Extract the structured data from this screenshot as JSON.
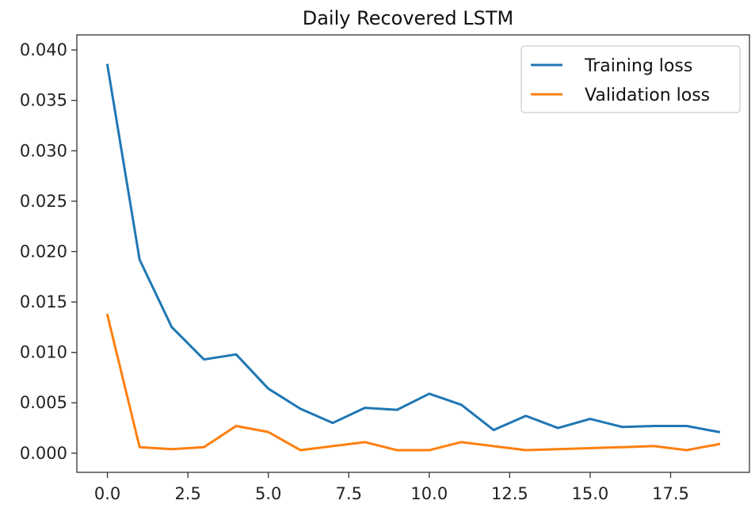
{
  "chart_data": {
    "type": "line",
    "title": "Daily Recovered LSTM",
    "xlabel": "",
    "ylabel": "",
    "xlim": [
      -0.95,
      19.95
    ],
    "ylim": [
      -0.0019,
      0.0415
    ],
    "grid": false,
    "legend_position": "top-right",
    "x": [
      0,
      1,
      2,
      3,
      4,
      5,
      6,
      7,
      8,
      9,
      10,
      11,
      12,
      13,
      14,
      15,
      16,
      17,
      18,
      19
    ],
    "x_ticks": [
      0.0,
      2.5,
      5.0,
      7.5,
      10.0,
      12.5,
      15.0,
      17.5
    ],
    "x_tick_labels": [
      "0.0",
      "2.5",
      "5.0",
      "7.5",
      "10.0",
      "12.5",
      "15.0",
      "17.5"
    ],
    "y_ticks": [
      0.0,
      0.005,
      0.01,
      0.015,
      0.02,
      0.025,
      0.03,
      0.035,
      0.04
    ],
    "y_tick_labels": [
      "0.000",
      "0.005",
      "0.010",
      "0.015",
      "0.020",
      "0.025",
      "0.030",
      "0.035",
      "0.040"
    ],
    "series": [
      {
        "name": "Training loss",
        "color": "#1f77b4",
        "values": [
          0.0385,
          0.0192,
          0.0125,
          0.0093,
          0.0098,
          0.0064,
          0.0044,
          0.003,
          0.0045,
          0.0043,
          0.0059,
          0.0048,
          0.0023,
          0.0037,
          0.0025,
          0.0034,
          0.0026,
          0.0027,
          0.0027,
          0.0021
        ]
      },
      {
        "name": "Validation loss",
        "color": "#ff7f0e",
        "values": [
          0.0137,
          0.0006,
          0.0004,
          0.0006,
          0.0027,
          0.0021,
          0.0003,
          0.0007,
          0.0011,
          0.0003,
          0.0003,
          0.0011,
          0.0007,
          0.0003,
          0.0004,
          0.0005,
          0.0006,
          0.0007,
          0.0003,
          0.0009
        ]
      }
    ]
  }
}
